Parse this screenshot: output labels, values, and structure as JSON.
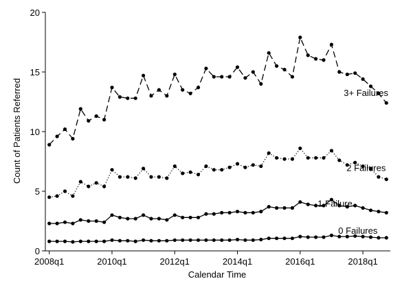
{
  "chart_data": {
    "type": "line",
    "xlabel": "Calendar Time",
    "ylabel": "Count of Patients Referred",
    "ylim": [
      0,
      20
    ],
    "yticks": [
      0,
      5,
      10,
      15,
      20
    ],
    "xticks": [
      "2008q1",
      "2010q1",
      "2012q1",
      "2014q1",
      "2016q1",
      "2018q1"
    ],
    "xlim_quarters": [
      "2008q1",
      "2018q4"
    ],
    "x": [
      "2008q1",
      "2008q2",
      "2008q3",
      "2008q4",
      "2009q1",
      "2009q2",
      "2009q3",
      "2009q4",
      "2010q1",
      "2010q2",
      "2010q3",
      "2010q4",
      "2011q1",
      "2011q2",
      "2011q3",
      "2011q4",
      "2012q1",
      "2012q2",
      "2012q3",
      "2012q4",
      "2013q1",
      "2013q2",
      "2013q3",
      "2013q4",
      "2014q1",
      "2014q2",
      "2014q3",
      "2014q4",
      "2015q1",
      "2015q2",
      "2015q3",
      "2015q4",
      "2016q1",
      "2016q2",
      "2016q3",
      "2016q4",
      "2017q1",
      "2017q2",
      "2017q3",
      "2017q4",
      "2018q1",
      "2018q2",
      "2018q3",
      "2018q4"
    ],
    "grid": false,
    "legend": "none",
    "series": [
      {
        "name": "3+ Failures",
        "line_style": "long-dash",
        "values": [
          8.9,
          9.6,
          10.2,
          9.4,
          11.9,
          10.9,
          11.3,
          11.0,
          13.7,
          12.9,
          12.8,
          12.8,
          14.7,
          13.0,
          13.5,
          13.0,
          14.8,
          13.5,
          13.2,
          13.7,
          15.3,
          14.6,
          14.6,
          14.6,
          15.4,
          14.5,
          15.0,
          14.0,
          16.6,
          15.5,
          15.2,
          14.6,
          17.9,
          16.4,
          16.1,
          16.0,
          17.3,
          15.0,
          14.8,
          14.9,
          14.4,
          13.8,
          13.2,
          12.4
        ]
      },
      {
        "name": "2 Failures",
        "line_style": "dotted",
        "values": [
          4.5,
          4.6,
          5.0,
          4.6,
          5.8,
          5.4,
          5.7,
          5.4,
          6.8,
          6.2,
          6.2,
          6.1,
          6.9,
          6.2,
          6.2,
          6.1,
          7.1,
          6.5,
          6.6,
          6.4,
          7.1,
          6.8,
          6.8,
          7.0,
          7.3,
          7.0,
          7.2,
          7.1,
          8.2,
          7.8,
          7.7,
          7.7,
          8.6,
          7.8,
          7.8,
          7.8,
          8.4,
          7.6,
          7.2,
          7.4,
          7.1,
          6.9,
          6.2,
          6.0
        ]
      },
      {
        "name": "1 Failure",
        "line_style": "solid",
        "values": [
          2.3,
          2.3,
          2.4,
          2.3,
          2.6,
          2.5,
          2.5,
          2.4,
          3.0,
          2.8,
          2.7,
          2.7,
          3.0,
          2.7,
          2.7,
          2.6,
          3.0,
          2.8,
          2.8,
          2.8,
          3.1,
          3.1,
          3.2,
          3.2,
          3.3,
          3.2,
          3.2,
          3.3,
          3.7,
          3.6,
          3.6,
          3.6,
          4.1,
          3.9,
          3.8,
          3.8,
          4.3,
          3.8,
          3.7,
          3.8,
          3.6,
          3.4,
          3.3,
          3.2
        ]
      },
      {
        "name": "0 Failures",
        "line_style": "solid",
        "values": [
          0.8,
          0.8,
          0.8,
          0.75,
          0.8,
          0.8,
          0.8,
          0.8,
          0.9,
          0.85,
          0.85,
          0.8,
          0.9,
          0.85,
          0.85,
          0.85,
          0.9,
          0.9,
          0.9,
          0.9,
          0.9,
          0.9,
          0.9,
          0.9,
          0.95,
          0.9,
          0.9,
          0.95,
          1.05,
          1.05,
          1.05,
          1.05,
          1.2,
          1.15,
          1.15,
          1.15,
          1.3,
          1.2,
          1.2,
          1.25,
          1.2,
          1.15,
          1.1,
          1.1
        ]
      }
    ],
    "colors": {
      "line": "#000000",
      "marker": "#000000",
      "axis": "#000000"
    }
  }
}
